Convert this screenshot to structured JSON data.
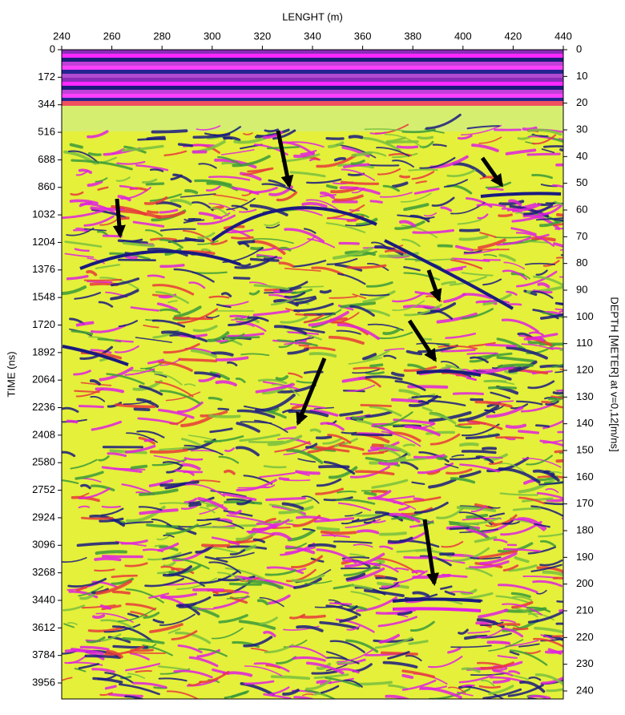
{
  "chart_data": {
    "type": "radargram",
    "x_label": "LENGHT (m)",
    "y_label": "TIME (ns)",
    "y2_label": "DEPTH [METER] at v=0,12[m/ns]",
    "xlim": [
      240,
      440
    ],
    "xticks": [
      240,
      260,
      280,
      300,
      320,
      340,
      360,
      380,
      400,
      420,
      440
    ],
    "ylim": [
      0,
      4056
    ],
    "yticks": [
      0,
      172,
      344,
      516,
      688,
      860,
      1032,
      1204,
      1376,
      1548,
      1720,
      1892,
      2064,
      2236,
      2408,
      2580,
      2752,
      2924,
      3096,
      3268,
      3440,
      3612,
      3784,
      3956
    ],
    "y2lim": [
      0,
      243
    ],
    "y2ticks": [
      0,
      10,
      20,
      30,
      40,
      50,
      60,
      70,
      80,
      90,
      100,
      110,
      120,
      130,
      140,
      150,
      160,
      170,
      180,
      190,
      200,
      210,
      220,
      230,
      240
    ],
    "y_inverted": true
  }
}
